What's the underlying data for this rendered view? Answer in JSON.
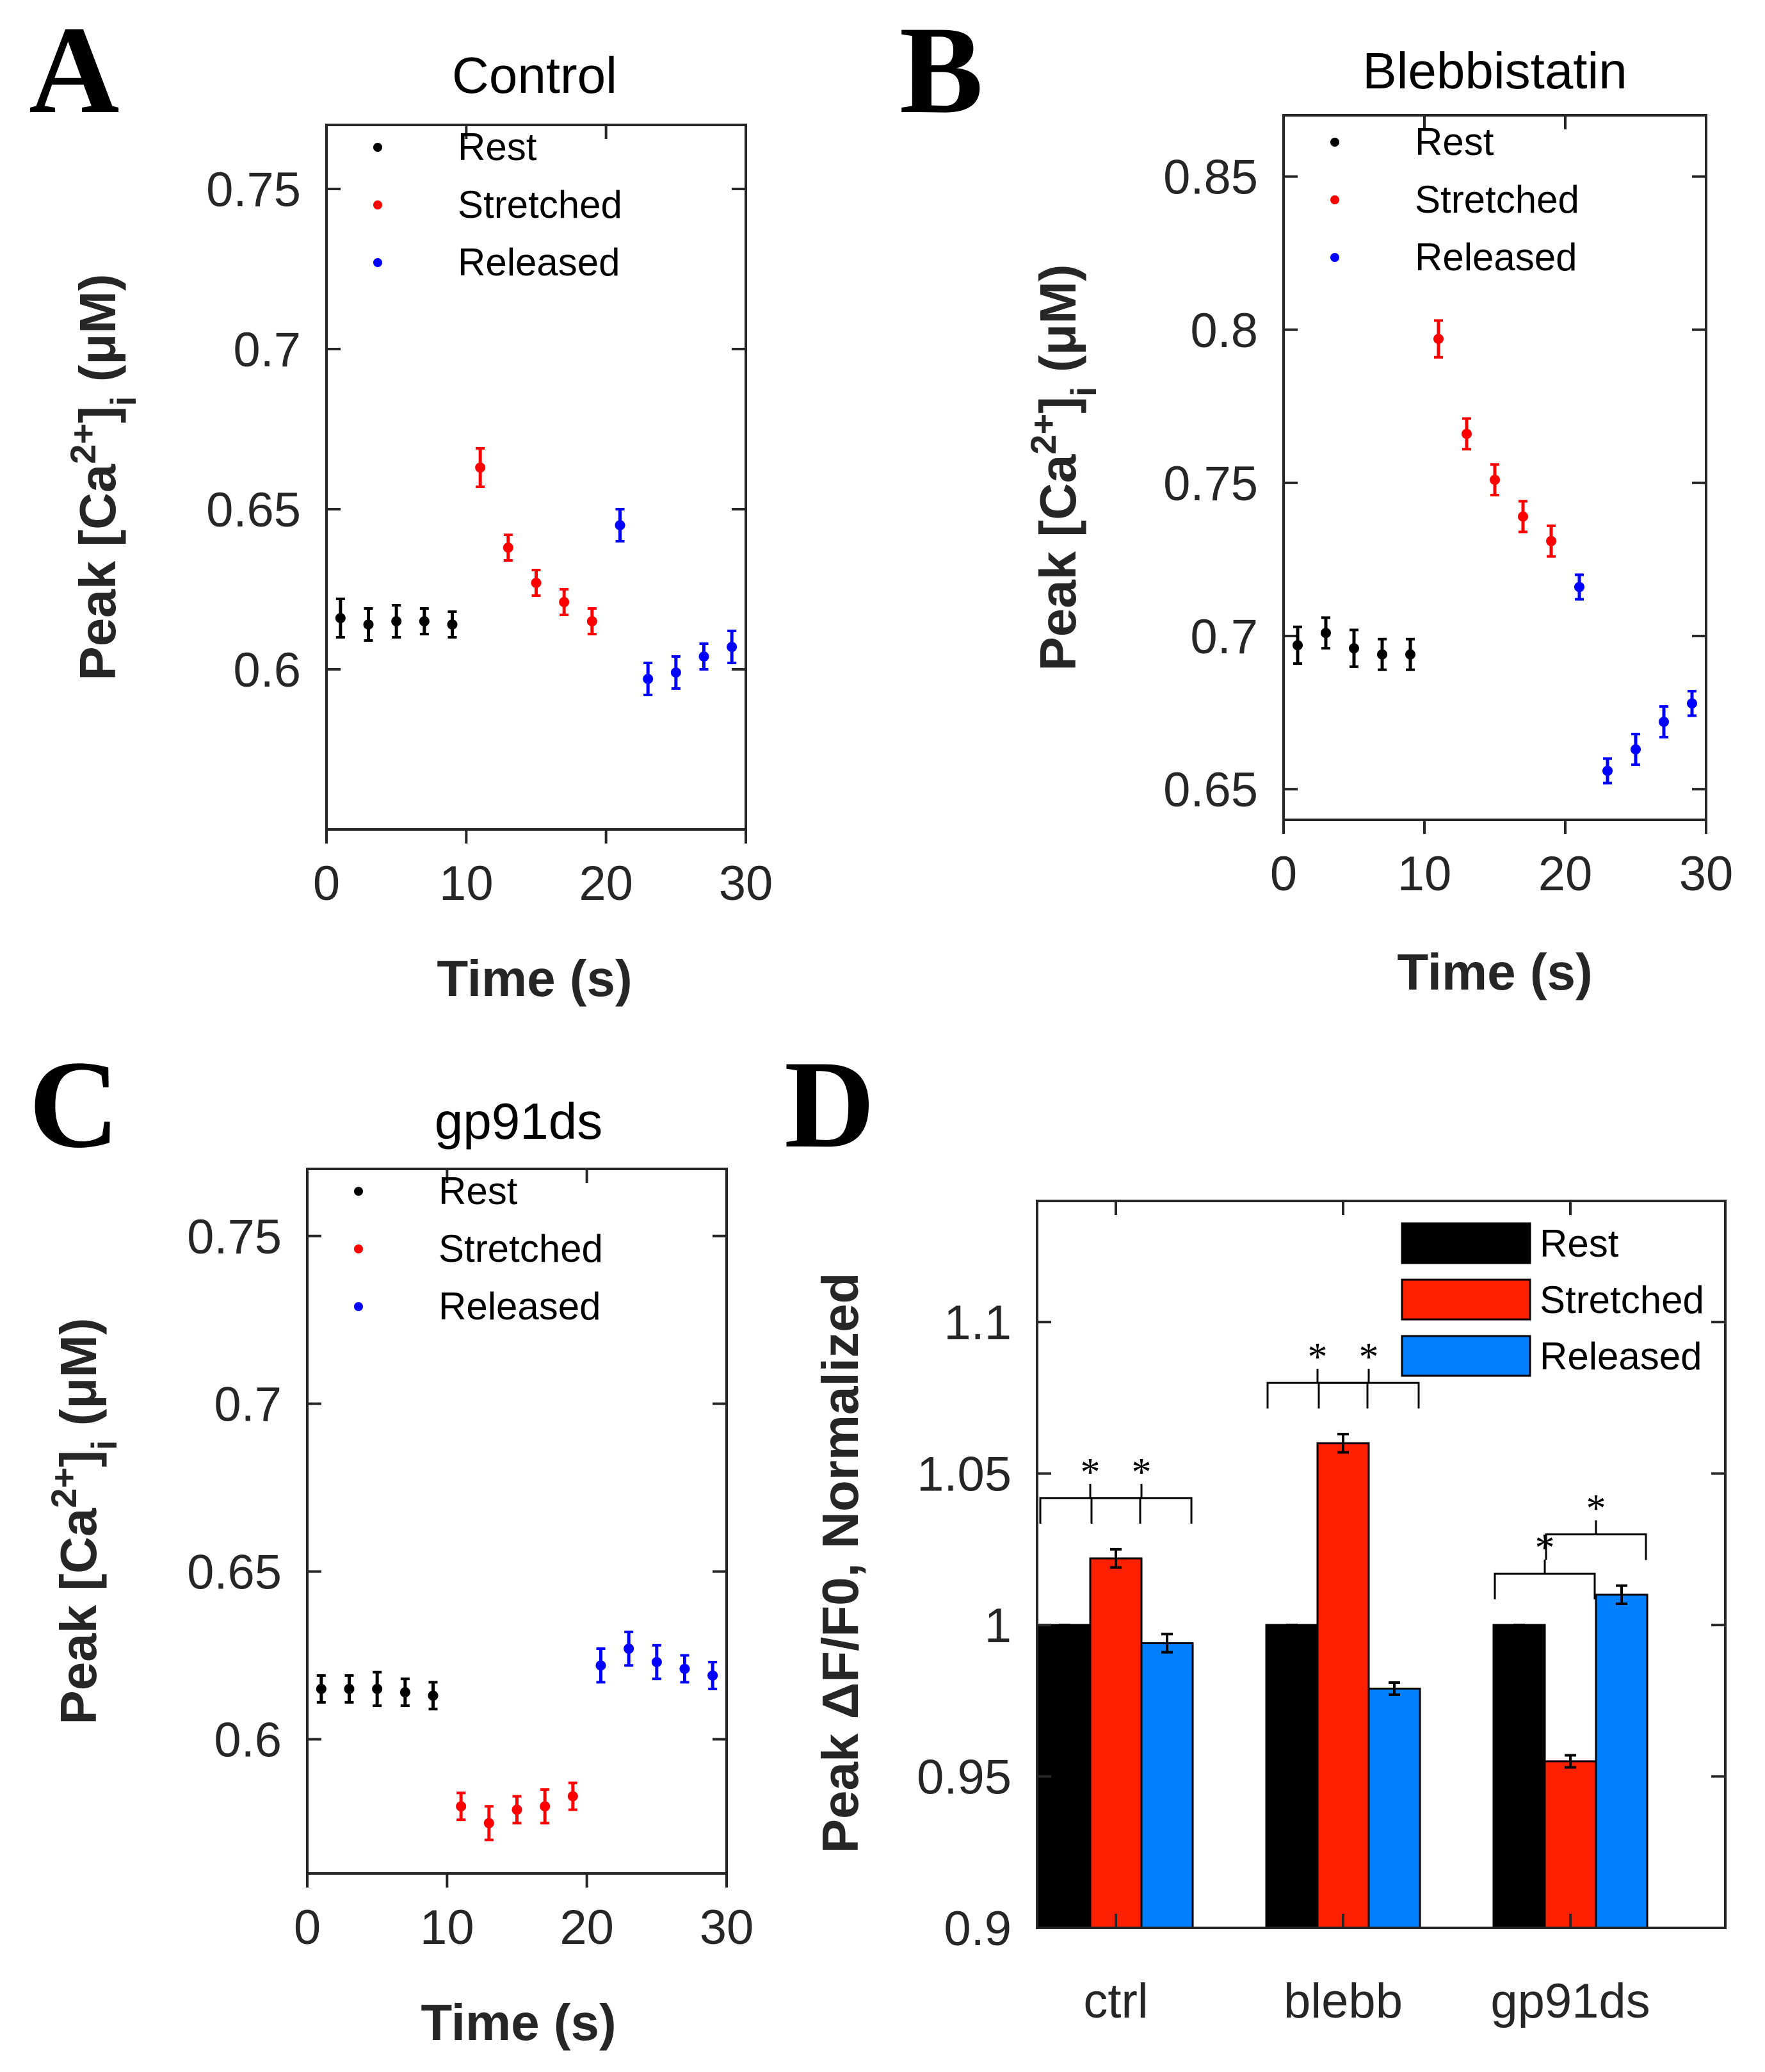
{
  "panel_labels": [
    "A",
    "B",
    "C",
    "D"
  ],
  "colors": {
    "rest": "#000000",
    "stretched": "#ff0000",
    "released": "#0000ff",
    "bar_rest": "#000000",
    "bar_stretched": "#ff2000",
    "bar_released": "#0080ff",
    "axis": "#262626"
  },
  "chart_data": [
    {
      "type": "scatter",
      "panel": "A",
      "title": "Control",
      "xlabel": "Time (s)",
      "ylabel": "Peak [Ca2+]i (μM)",
      "xlim": [
        0,
        30
      ],
      "ylim": [
        0.55,
        0.77
      ],
      "xticks": [
        0,
        10,
        20,
        30
      ],
      "yticks": [
        0.6,
        0.65,
        0.7,
        0.75
      ],
      "ytick_labels": [
        "0.6",
        "0.65",
        "0.7",
        "0.75"
      ],
      "legend": [
        "Rest",
        "Stretched",
        "Released"
      ],
      "series": [
        {
          "name": "Rest",
          "x": [
            1,
            3,
            5,
            7,
            9
          ],
          "y": [
            0.616,
            0.614,
            0.615,
            0.615,
            0.614
          ],
          "err": [
            0.006,
            0.005,
            0.005,
            0.004,
            0.004
          ]
        },
        {
          "name": "Stretched",
          "x": [
            11,
            13,
            15,
            17,
            19
          ],
          "y": [
            0.663,
            0.638,
            0.627,
            0.621,
            0.615
          ],
          "err": [
            0.006,
            0.004,
            0.004,
            0.004,
            0.004
          ]
        },
        {
          "name": "Released",
          "x": [
            21,
            23,
            25,
            27,
            29
          ],
          "y": [
            0.645,
            0.597,
            0.599,
            0.604,
            0.607
          ],
          "err": [
            0.005,
            0.005,
            0.005,
            0.004,
            0.005
          ]
        }
      ]
    },
    {
      "type": "scatter",
      "panel": "B",
      "title": "Blebbistatin",
      "xlabel": "Time (s)",
      "ylabel": "Peak [Ca2+]i (μM)",
      "xlim": [
        0,
        30
      ],
      "ylim": [
        0.64,
        0.87
      ],
      "xticks": [
        0,
        10,
        20,
        30
      ],
      "yticks": [
        0.65,
        0.7,
        0.75,
        0.8,
        0.85
      ],
      "ytick_labels": [
        "0.65",
        "0.7",
        "0.75",
        "0.8",
        "0.85"
      ],
      "legend": [
        "Rest",
        "Stretched",
        "Released"
      ],
      "series": [
        {
          "name": "Rest",
          "x": [
            1,
            3,
            5,
            7,
            9
          ],
          "y": [
            0.697,
            0.701,
            0.696,
            0.694,
            0.694
          ],
          "err": [
            0.006,
            0.005,
            0.006,
            0.005,
            0.005
          ]
        },
        {
          "name": "Stretched",
          "x": [
            11,
            13,
            15,
            17,
            19
          ],
          "y": [
            0.797,
            0.766,
            0.751,
            0.739,
            0.731
          ],
          "err": [
            0.006,
            0.005,
            0.005,
            0.005,
            0.005
          ]
        },
        {
          "name": "Released",
          "x": [
            21,
            23,
            25,
            27,
            29
          ],
          "y": [
            0.716,
            0.656,
            0.663,
            0.672,
            0.678
          ],
          "err": [
            0.004,
            0.004,
            0.005,
            0.005,
            0.004
          ]
        }
      ]
    },
    {
      "type": "scatter",
      "panel": "C",
      "title": "gp91ds",
      "xlabel": "Time (s)",
      "ylabel": "Peak [Ca2+]i (μM)",
      "xlim": [
        0,
        30
      ],
      "ylim": [
        0.56,
        0.77
      ],
      "xticks": [
        0,
        10,
        20,
        30
      ],
      "yticks": [
        0.6,
        0.65,
        0.7,
        0.75
      ],
      "ytick_labels": [
        "0.6",
        "0.65",
        "0.7",
        "0.75"
      ],
      "legend": [
        "Rest",
        "Stretched",
        "Released"
      ],
      "series": [
        {
          "name": "Rest",
          "x": [
            1,
            3,
            5,
            7,
            9
          ],
          "y": [
            0.615,
            0.615,
            0.615,
            0.614,
            0.613
          ],
          "err": [
            0.004,
            0.004,
            0.005,
            0.004,
            0.004
          ]
        },
        {
          "name": "Stretched",
          "x": [
            11,
            13,
            15,
            17,
            19
          ],
          "y": [
            0.58,
            0.575,
            0.579,
            0.58,
            0.583
          ],
          "err": [
            0.004,
            0.005,
            0.004,
            0.005,
            0.004
          ]
        },
        {
          "name": "Released",
          "x": [
            21,
            23,
            25,
            27,
            29
          ],
          "y": [
            0.622,
            0.627,
            0.623,
            0.621,
            0.619
          ],
          "err": [
            0.005,
            0.005,
            0.005,
            0.004,
            0.004
          ]
        }
      ]
    },
    {
      "type": "bar",
      "panel": "D",
      "title": "",
      "xlabel": "",
      "ylabel": "Peak ΔF/F0, Normalized",
      "categories": [
        "ctrl",
        "blebb",
        "gp91ds"
      ],
      "ylim": [
        0.9,
        1.14
      ],
      "yticks": [
        0.9,
        0.95,
        1.0,
        1.05,
        1.1
      ],
      "ytick_labels": [
        "0.9",
        "0.95",
        "1",
        "1.05",
        "1.1"
      ],
      "legend": [
        "Rest",
        "Stretched",
        "Released"
      ],
      "legend_position": "top-right",
      "series": [
        {
          "name": "Rest",
          "values": [
            1.0,
            1.0,
            1.0
          ],
          "err": [
            0.0,
            0.0,
            0.0
          ]
        },
        {
          "name": "Stretched",
          "values": [
            1.022,
            1.06,
            0.955
          ],
          "err": [
            0.003,
            0.003,
            0.002
          ]
        },
        {
          "name": "Released",
          "values": [
            0.994,
            0.979,
            1.01
          ],
          "err": [
            0.003,
            0.002,
            0.003
          ]
        }
      ],
      "significance": [
        {
          "category": "ctrl",
          "pair": [
            "Rest",
            "Stretched"
          ],
          "label": "*"
        },
        {
          "category": "ctrl",
          "pair": [
            "Stretched",
            "Released"
          ],
          "label": "*"
        },
        {
          "category": "blebb",
          "pair": [
            "Rest",
            "Stretched"
          ],
          "label": "*"
        },
        {
          "category": "blebb",
          "pair": [
            "Stretched",
            "Released"
          ],
          "label": "*"
        },
        {
          "category": "gp91ds",
          "pair": [
            "Rest",
            "Stretched"
          ],
          "label": "*"
        },
        {
          "category": "gp91ds",
          "pair": [
            "Stretched",
            "Released"
          ],
          "label": "*"
        }
      ]
    }
  ]
}
